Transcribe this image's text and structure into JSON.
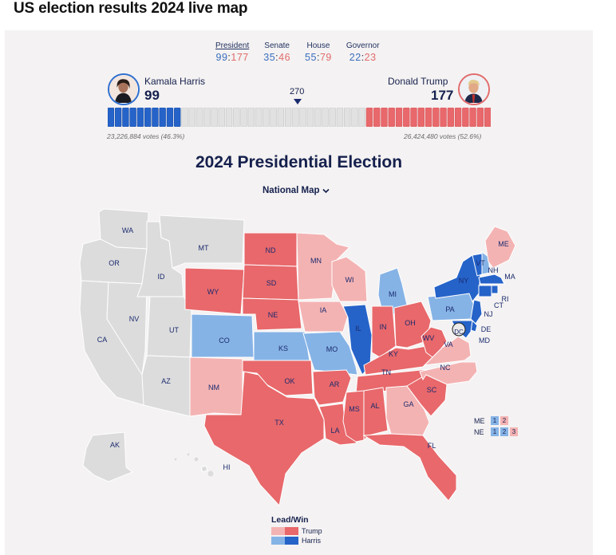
{
  "page": {
    "heading": "US election results 2024 live map"
  },
  "tabs": [
    {
      "label": "President",
      "dem": "99",
      "rep": "177",
      "active": true
    },
    {
      "label": "Senate",
      "dem": "35",
      "rep": "46"
    },
    {
      "label": "House",
      "dem": "55",
      "rep": "79"
    },
    {
      "label": "Governor",
      "dem": "22",
      "rep": "23"
    }
  ],
  "harris": {
    "name": "Kamala Harris",
    "electoral_votes": "99",
    "votes": "23,226,884 votes (46.3%)",
    "color": "#2e6fd0"
  },
  "trump": {
    "name": "Donald Trump",
    "electoral_votes": "177",
    "votes": "26,424,480 votes (52.6%)",
    "color": "#e26b6b"
  },
  "threshold": "270",
  "bar": {
    "total": 538,
    "dem_won": 99,
    "rep_won": 177
  },
  "election_title": "2024 Presidential Election",
  "map_selector": "National Map",
  "colors": {
    "trump_win": "#e8686b",
    "trump_lead": "#f4b3b3",
    "harris_win": "#2563c9",
    "harris_lead": "#86b3e6",
    "no_result": "#dcdcdc"
  },
  "states": [
    {
      "abbr": "WA",
      "status": "none"
    },
    {
      "abbr": "OR",
      "status": "none"
    },
    {
      "abbr": "CA",
      "status": "none"
    },
    {
      "abbr": "NV",
      "status": "none"
    },
    {
      "abbr": "ID",
      "status": "none"
    },
    {
      "abbr": "MT",
      "status": "none"
    },
    {
      "abbr": "UT",
      "status": "none"
    },
    {
      "abbr": "AZ",
      "status": "none"
    },
    {
      "abbr": "WY",
      "status": "r_win"
    },
    {
      "abbr": "CO",
      "status": "d_lead"
    },
    {
      "abbr": "NM",
      "status": "r_lead"
    },
    {
      "abbr": "ND",
      "status": "r_win"
    },
    {
      "abbr": "SD",
      "status": "r_win"
    },
    {
      "abbr": "NE",
      "status": "r_win"
    },
    {
      "abbr": "KS",
      "status": "d_lead"
    },
    {
      "abbr": "OK",
      "status": "r_win"
    },
    {
      "abbr": "TX",
      "status": "r_win"
    },
    {
      "abbr": "MN",
      "status": "r_lead"
    },
    {
      "abbr": "IA",
      "status": "r_lead"
    },
    {
      "abbr": "MO",
      "status": "d_lead"
    },
    {
      "abbr": "AR",
      "status": "r_win"
    },
    {
      "abbr": "LA",
      "status": "r_win"
    },
    {
      "abbr": "WI",
      "status": "r_lead"
    },
    {
      "abbr": "IL",
      "status": "d_win"
    },
    {
      "abbr": "MI",
      "status": "d_lead"
    },
    {
      "abbr": "IN",
      "status": "r_win"
    },
    {
      "abbr": "OH",
      "status": "r_win"
    },
    {
      "abbr": "KY",
      "status": "r_win"
    },
    {
      "abbr": "TN",
      "status": "r_win"
    },
    {
      "abbr": "MS",
      "status": "r_win"
    },
    {
      "abbr": "AL",
      "status": "r_win"
    },
    {
      "abbr": "GA",
      "status": "r_lead"
    },
    {
      "abbr": "FL",
      "status": "r_win"
    },
    {
      "abbr": "SC",
      "status": "r_win"
    },
    {
      "abbr": "NC",
      "status": "r_lead"
    },
    {
      "abbr": "VA",
      "status": "r_lead"
    },
    {
      "abbr": "WV",
      "status": "r_win"
    },
    {
      "abbr": "PA",
      "status": "d_lead"
    },
    {
      "abbr": "NY",
      "status": "d_win"
    },
    {
      "abbr": "VT",
      "status": "d_win"
    },
    {
      "abbr": "NH",
      "status": "d_lead"
    },
    {
      "abbr": "ME",
      "status": "r_lead"
    },
    {
      "abbr": "MA",
      "status": "d_win"
    },
    {
      "abbr": "RI",
      "status": "d_win"
    },
    {
      "abbr": "CT",
      "status": "d_win"
    },
    {
      "abbr": "NJ",
      "status": "d_win"
    },
    {
      "abbr": "DE",
      "status": "d_win"
    },
    {
      "abbr": "MD",
      "status": "d_win"
    },
    {
      "abbr": "DC",
      "status": "none"
    },
    {
      "abbr": "AK",
      "status": "none"
    },
    {
      "abbr": "HI",
      "status": "none"
    }
  ],
  "splits": {
    "me": {
      "label": "ME",
      "districts": [
        "1",
        "2"
      ]
    },
    "ne": {
      "label": "NE",
      "districts": [
        "1",
        "2",
        "3"
      ]
    }
  },
  "legend": {
    "title": "Lead/Win",
    "trump": "Trump",
    "harris": "Harris"
  }
}
